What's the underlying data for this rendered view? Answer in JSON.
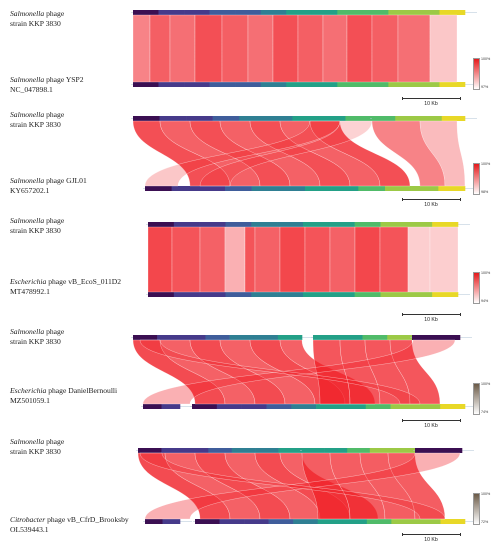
{
  "colors": {
    "match_red": "#f01e25",
    "gradient": [
      "#3b0f52",
      "#463a8a",
      "#3f5d9b",
      "#2f7f93",
      "#23a087",
      "#50bb69",
      "#9cc946",
      "#e8d827"
    ]
  },
  "panels": [
    {
      "query": {
        "organism": "Salmonella",
        "name": "phage",
        "strain": "strain KKP 3830"
      },
      "subject": {
        "organism": "Salmonella",
        "name": "phage YSP2",
        "accession": "NC_047898.1"
      },
      "legend": {
        "high": "100%",
        "low": "97%"
      },
      "scale_label": "10 Kb"
    },
    {
      "query": {
        "organism": "Salmonella",
        "name": "phage",
        "strain": "strain KKP 3830"
      },
      "subject": {
        "organism": "Salmonella",
        "name": "phage GJL01",
        "accession": "KY657202.1"
      },
      "legend": {
        "high": "100%",
        "low": "98%"
      },
      "scale_label": "10 Kb"
    },
    {
      "query": {
        "organism": "Salmonella",
        "name": "phage",
        "strain": "strain KKP 3830"
      },
      "subject": {
        "organism": "Escherichia",
        "name": "phage vB_EcoS_011D2",
        "accession": "MT478992.1"
      },
      "legend": {
        "high": "100%",
        "low": "94%"
      },
      "scale_label": "10 Kb"
    },
    {
      "query": {
        "organism": "Salmonella",
        "name": "phage",
        "strain": "strain KKP 3830"
      },
      "subject": {
        "organism": "Escherichia",
        "name": "phage DanielBernoulli",
        "accession": "MZ501059.1"
      },
      "legend": {
        "high": "100%",
        "low": "74%"
      },
      "scale_label": "10 Kb"
    },
    {
      "query": {
        "organism": "Salmonella",
        "name": "phage",
        "strain": "strain KKP 3830"
      },
      "subject": {
        "organism": "Citrobacter",
        "name": "phage vB_CfrD_Brooksby",
        "accession": "OL539443.1"
      },
      "legend": {
        "high": "100%",
        "low": "72%"
      },
      "scale_label": "10 Kb"
    }
  ]
}
